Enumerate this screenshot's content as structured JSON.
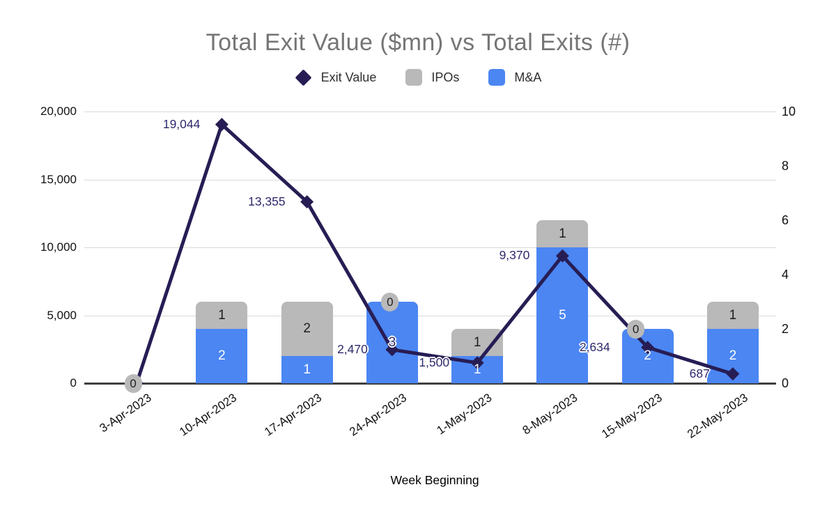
{
  "title": "Total Exit Value ($mn) vs Total Exits (#)",
  "chart_data": {
    "type": "combo-stacked-bar-line",
    "title": "Total Exit Value ($mn) vs Total Exits (#)",
    "xlabel": "Week Beginning",
    "categories": [
      "3-Apr-2023",
      "10-Apr-2023",
      "17-Apr-2023",
      "24-Apr-2023",
      "1-May-2023",
      "8-May-2023",
      "15-May-2023",
      "22-May-2023"
    ],
    "bar_series": [
      {
        "name": "M&A",
        "color": "#4b86f3",
        "values": [
          0,
          2,
          1,
          3,
          1,
          5,
          2,
          2
        ]
      },
      {
        "name": "IPOs",
        "color": "#b9b9b9",
        "values": [
          0,
          1,
          2,
          0,
          1,
          1,
          0,
          1
        ]
      }
    ],
    "line_series": {
      "name": "Exit Value",
      "color": "#271d54",
      "axis": "left",
      "values": [
        0,
        19044,
        13355,
        2470,
        1500,
        9370,
        2634,
        687
      ],
      "point_labels": [
        "",
        "19,044",
        "13,355",
        "2,470",
        "1,500",
        "9,370",
        "2,634",
        "687"
      ]
    },
    "left_axis": {
      "min": 0,
      "max": 20000,
      "tick_values": [
        0,
        5000,
        10000,
        15000,
        20000
      ],
      "tick_labels": [
        "0",
        "5,000",
        "10,000",
        "15,000",
        "20,000"
      ]
    },
    "right_axis": {
      "min": 0,
      "max": 10,
      "tick_values": [
        0,
        2,
        4,
        6,
        8,
        10
      ],
      "tick_labels": [
        "0",
        "2",
        "4",
        "6",
        "8",
        "10"
      ]
    },
    "legend": [
      {
        "label": "Exit Value",
        "swatch": "diamond",
        "color": "#271d54"
      },
      {
        "label": "IPOs",
        "swatch": "square",
        "color": "#b9b9b9"
      },
      {
        "label": "M&A",
        "swatch": "square",
        "color": "#4b86f3"
      }
    ],
    "layout_hints": {
      "legend_position": "top",
      "grid": "horizontal-left-axis-only",
      "stacked": true,
      "bar_axis": "right",
      "line_axis": "left",
      "line_label_dx": [
        0,
        -31,
        -31,
        -35,
        -40,
        -47,
        -54,
        -33
      ],
      "zero_pill_dx": {
        "0": -5,
        "3": -3,
        "6": -17
      },
      "navy_halo_mna_label_index": 3
    }
  }
}
